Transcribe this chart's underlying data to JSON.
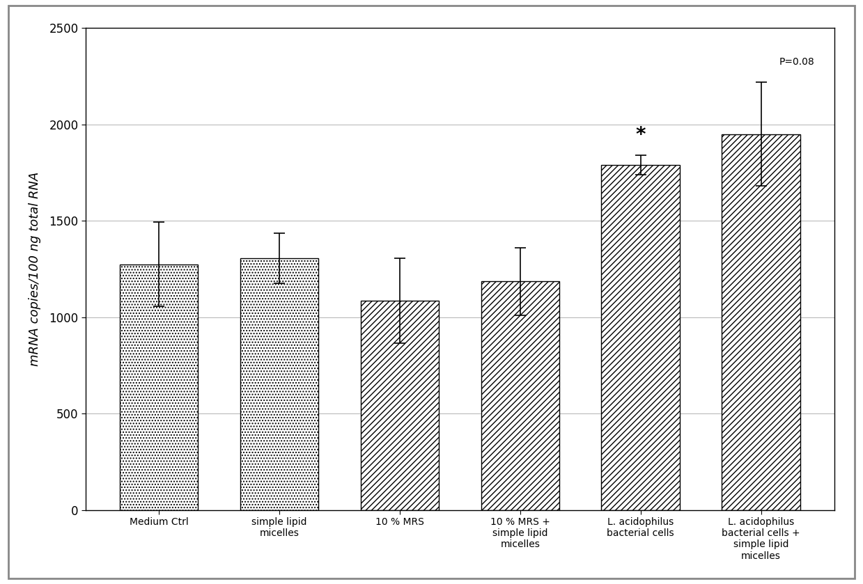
{
  "categories": [
    "Medium Ctrl",
    "simple lipid\nmicelles",
    "10 % MRS",
    "10 % MRS +\nsimple lipid\nmicelles",
    "L. acidophilus\nbacterial cells",
    "L. acidophilus\nbacterial cells +\nsimple lipid\nmicelles"
  ],
  "values": [
    1275,
    1305,
    1085,
    1185,
    1790,
    1950
  ],
  "errors": [
    220,
    130,
    220,
    175,
    50,
    270
  ],
  "hatch_styles": [
    "....",
    "....",
    "////",
    "////",
    "////",
    "////"
  ],
  "ylabel": "mRNA copies/100 ng total RNA",
  "ylim": [
    0,
    2500
  ],
  "yticks": [
    0,
    500,
    1000,
    1500,
    2000,
    2500
  ],
  "star_bar_index": 4,
  "star_label": "*",
  "pval_bar_index": 5,
  "pval_label": "P=0.08",
  "background_color": "#ffffff",
  "plot_bg_color": "#ffffff",
  "border_color": "#000000",
  "bar_width": 0.65,
  "figsize": [
    12.39,
    8.39
  ],
  "dpi": 100
}
